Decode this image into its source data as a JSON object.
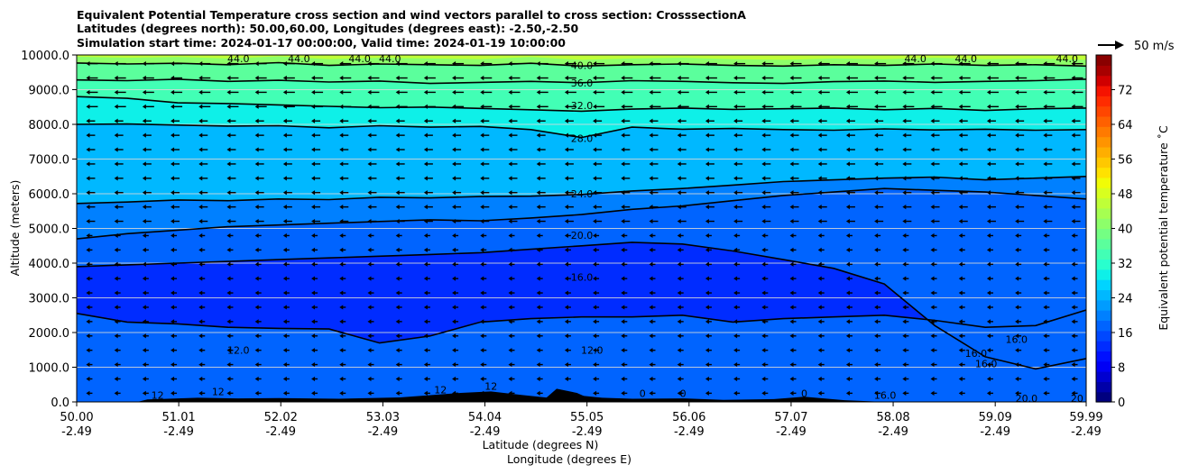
{
  "chart_data": {
    "type": "heatmap",
    "title_lines": [
      "Equivalent Potential Temperature cross section and wind vectors parallel to cross section: CrosssectionA",
      "Latitudes (degrees north): 50.00,60.00, Longitudes (degrees east): -2.50,-2.50",
      "Simulation start time: 2024-01-17 00:00:00, Valid time: 2024-01-19 10:00:00"
    ],
    "xlabel_lat": "Latitude (degrees N)",
    "xlabel_lon": "Longitude (degrees E)",
    "ylabel": "Altitude (meters)",
    "xlim": [
      50.0,
      59.99
    ],
    "ylim": [
      0,
      10000
    ],
    "x_ticks": [
      {
        "lat": "50.00",
        "lon": "-2.49",
        "value": 50.0
      },
      {
        "lat": "51.01",
        "lon": "-2.49",
        "value": 51.01
      },
      {
        "lat": "52.02",
        "lon": "-2.49",
        "value": 52.02
      },
      {
        "lat": "53.03",
        "lon": "-2.49",
        "value": 53.03
      },
      {
        "lat": "54.04",
        "lon": "-2.49",
        "value": 54.04
      },
      {
        "lat": "55.05",
        "lon": "-2.49",
        "value": 55.05
      },
      {
        "lat": "56.06",
        "lon": "-2.49",
        "value": 56.06
      },
      {
        "lat": "57.07",
        "lon": "-2.49",
        "value": 57.07
      },
      {
        "lat": "58.08",
        "lon": "-2.49",
        "value": 58.08
      },
      {
        "lat": "59.09",
        "lon": "-2.49",
        "value": 59.09
      },
      {
        "lat": "59.99",
        "lon": "-2.49",
        "value": 59.99
      }
    ],
    "y_ticks": [
      {
        "label": "0.0",
        "value": 0
      },
      {
        "label": "1000.0",
        "value": 1000
      },
      {
        "label": "2000.0",
        "value": 2000
      },
      {
        "label": "3000.0",
        "value": 3000
      },
      {
        "label": "4000.0",
        "value": 4000
      },
      {
        "label": "5000.0",
        "value": 5000
      },
      {
        "label": "6000.0",
        "value": 6000
      },
      {
        "label": "7000.0",
        "value": 7000
      },
      {
        "label": "8000.0",
        "value": 8000
      },
      {
        "label": "9000.0",
        "value": 9000
      },
      {
        "label": "10000.0",
        "value": 10000
      }
    ],
    "horizontal_grid": true,
    "colorbar": {
      "label": "Equivalent potential temperature ˚C",
      "min": 0,
      "max": 80,
      "ticks": [
        "0",
        "8",
        "16",
        "24",
        "32",
        "40",
        "48",
        "56",
        "64",
        "72"
      ],
      "colors": [
        "#00007f",
        "#0000a8",
        "#0000d0",
        "#0000f5",
        "#0010ff",
        "#002cff",
        "#0048ff",
        "#0064ff",
        "#0080ff",
        "#009cff",
        "#00b8ff",
        "#00d4ff",
        "#0ef0e8",
        "#29ffce",
        "#42ffb5",
        "#5bff9c",
        "#74ff83",
        "#8dff6a",
        "#a6ff51",
        "#bfff38",
        "#d8ff1f",
        "#f1fc06",
        "#ffe200",
        "#ffc800",
        "#ffae00",
        "#ff9400",
        "#ff7a00",
        "#ff6000",
        "#ff4600",
        "#ff2c00",
        "#f51300",
        "#d00000",
        "#a80000",
        "#8a0000"
      ]
    },
    "quiver_key": {
      "label": "50 m/s",
      "reference_speed_ms": 50
    },
    "contour_lines": [
      {
        "level": 40.0,
        "altitude_profile": [
          9770,
          9740,
          9760,
          9720,
          9780,
          9700,
          9740,
          9720,
          9700,
          9760,
          9680,
          9720,
          9740,
          9700,
          9680,
          9720,
          9700,
          9740,
          9700,
          9720,
          9680
        ]
      },
      {
        "level": 36.0,
        "altitude_profile": [
          9280,
          9260,
          9300,
          9240,
          9270,
          9220,
          9250,
          9180,
          9210,
          9240,
          9200,
          9260,
          9240,
          9200,
          9180,
          9230,
          9250,
          9210,
          9240,
          9260,
          9300
        ]
      },
      {
        "level": 32.0,
        "altitude_profile": [
          8800,
          8750,
          8620,
          8600,
          8560,
          8520,
          8480,
          8500,
          8460,
          8420,
          8380,
          8440,
          8470,
          8430,
          8450,
          8470,
          8420,
          8460,
          8400,
          8450,
          8470
        ]
      },
      {
        "level": 28.0,
        "altitude_profile": [
          8000,
          8010,
          7980,
          7950,
          7960,
          7900,
          7960,
          7920,
          7940,
          7850,
          7620,
          7920,
          7860,
          7880,
          7850,
          7830,
          7870,
          7840,
          7860,
          7830,
          7850
        ]
      },
      {
        "level": 24.0,
        "altitude_profile": [
          5720,
          5760,
          5820,
          5800,
          5850,
          5830,
          5900,
          5880,
          5920,
          5930,
          5980,
          6080,
          6150,
          6250,
          6350,
          6400,
          6450,
          6480,
          6400,
          6450,
          6500
        ]
      },
      {
        "level": 20.0,
        "altitude_profile": [
          4700,
          4850,
          4950,
          5050,
          5100,
          5150,
          5200,
          5250,
          5220,
          5300,
          5400,
          5550,
          5650,
          5800,
          5950,
          6050,
          6150,
          6100,
          6050,
          5950,
          5850
        ]
      },
      {
        "level": 16.0,
        "altitude_profile": [
          3900,
          3950,
          4000,
          4050,
          4100,
          4150,
          4200,
          4250,
          4300,
          4400,
          4500,
          4600,
          4550,
          4350,
          4100,
          3850,
          3400,
          2200,
          1300,
          950,
          1250
        ]
      },
      {
        "level": 12.0,
        "altitude_profile": [
          2550,
          2300,
          2250,
          2150,
          2120,
          2100,
          1700,
          1900,
          2300,
          2400,
          2450,
          2450,
          2500,
          2300,
          2400,
          2450,
          2500,
          2350,
          2150,
          2200,
          2650
        ]
      }
    ],
    "contour_labels": [
      {
        "text": "44.0",
        "x": 51.6,
        "y": 9900
      },
      {
        "text": "44.0",
        "x": 52.2,
        "y": 9900
      },
      {
        "text": "44.0",
        "x": 52.8,
        "y": 9900
      },
      {
        "text": "44.0",
        "x": 53.1,
        "y": 9900
      },
      {
        "text": "40.0",
        "x": 55.0,
        "y": 9700
      },
      {
        "text": "44.0",
        "x": 58.3,
        "y": 9900
      },
      {
        "text": "44.0",
        "x": 58.8,
        "y": 9900
      },
      {
        "text": "44.0",
        "x": 59.8,
        "y": 9900
      },
      {
        "text": "36.0",
        "x": 55.0,
        "y": 9200
      },
      {
        "text": "32.0",
        "x": 55.0,
        "y": 8550
      },
      {
        "text": "28.0",
        "x": 55.0,
        "y": 7600
      },
      {
        "text": "24.0",
        "x": 55.0,
        "y": 6000
      },
      {
        "text": "20.0",
        "x": 55.0,
        "y": 4800
      },
      {
        "text": "16.0",
        "x": 55.0,
        "y": 3600
      },
      {
        "text": "12.0",
        "x": 51.6,
        "y": 1500
      },
      {
        "text": "12.0",
        "x": 55.1,
        "y": 1500
      },
      {
        "text": "16.0",
        "x": 58.9,
        "y": 1400
      },
      {
        "text": "16.0",
        "x": 59.0,
        "y": 1100
      },
      {
        "text": "16.0",
        "x": 59.3,
        "y": 1800
      },
      {
        "text": "16.0",
        "x": 58.0,
        "y": 200
      },
      {
        "text": "20.0",
        "x": 59.4,
        "y": 100
      },
      {
        "text": "20",
        "x": 59.9,
        "y": 100
      },
      {
        "text": "12",
        "x": 50.8,
        "y": 200
      },
      {
        "text": "12",
        "x": 51.4,
        "y": 300
      },
      {
        "text": "12",
        "x": 53.6,
        "y": 350
      },
      {
        "text": "12",
        "x": 54.1,
        "y": 450
      },
      {
        "text": "0",
        "x": 55.6,
        "y": 250
      },
      {
        "text": "0",
        "x": 56.0,
        "y": 250
      },
      {
        "text": "0",
        "x": 57.2,
        "y": 250
      }
    ]
  }
}
